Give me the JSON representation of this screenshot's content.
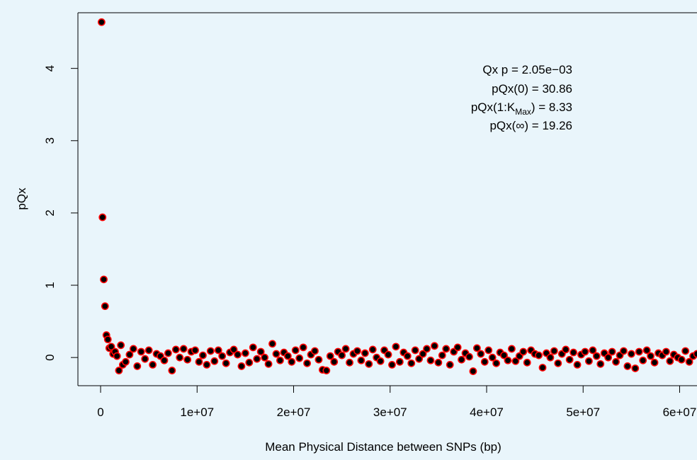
{
  "chart_data": {
    "type": "scatter",
    "xlabel": "Mean Physical Distance between SNPs (bp)",
    "ylabel": "pQx",
    "annotations": [
      "Qx p = 2.05e−03",
      "pQx(0) = 30.86",
      {
        "before": "pQx(1:K",
        "sub": "Max",
        "after": ") = 8.33"
      },
      "pQx(∞) = 19.26"
    ],
    "color": "#000000",
    "edgecolor": "#ff0000",
    "xlim": [
      -2350000,
      61800000
    ],
    "ylim": [
      -0.39,
      4.77
    ],
    "xticks": [
      0,
      {
        "value": 10000000,
        "label": "1e+07"
      },
      {
        "value": 20000000,
        "label": "2e+07"
      },
      {
        "value": 30000000,
        "label": "3e+07"
      },
      {
        "value": 40000000,
        "label": "4e+07"
      },
      {
        "value": 50000000,
        "label": "5e+07"
      },
      {
        "value": 60000000,
        "label": "6e+07"
      }
    ],
    "yticks": [
      0,
      1,
      2,
      3,
      4
    ],
    "x": [
      100000,
      200000,
      330000,
      460000,
      600000,
      750000,
      900000,
      1100000,
      1300000,
      1500000,
      1700000,
      1900000,
      2100000,
      2300000,
      2600000,
      3000000,
      3400000,
      3800000,
      4200000,
      4600000,
      5000000,
      5400000,
      5800000,
      6200000,
      6600000,
      7000000,
      7400000,
      7800000,
      8200000,
      8600000,
      9000000,
      9400000,
      9800000,
      10200000,
      10600000,
      11000000,
      11400000,
      11800000,
      12200000,
      12600000,
      13000000,
      13400000,
      13800000,
      14200000,
      14600000,
      15000000,
      15400000,
      15800000,
      16200000,
      16600000,
      17000000,
      17400000,
      17800000,
      18200000,
      18600000,
      19000000,
      19400000,
      19800000,
      20200000,
      20600000,
      21000000,
      21400000,
      21800000,
      22200000,
      22600000,
      23000000,
      23400000,
      23800000,
      24200000,
      24600000,
      25000000,
      25400000,
      25800000,
      26200000,
      26600000,
      27000000,
      27400000,
      27800000,
      28200000,
      28600000,
      29000000,
      29400000,
      29800000,
      30200000,
      30600000,
      31000000,
      31400000,
      31800000,
      32200000,
      32600000,
      33000000,
      33400000,
      33800000,
      34200000,
      34600000,
      35000000,
      35400000,
      35800000,
      36200000,
      36600000,
      37000000,
      37400000,
      37800000,
      38200000,
      38600000,
      39000000,
      39400000,
      39800000,
      40200000,
      40600000,
      41000000,
      41400000,
      41800000,
      42200000,
      42600000,
      43000000,
      43400000,
      43800000,
      44200000,
      44600000,
      45000000,
      45400000,
      45800000,
      46200000,
      46600000,
      47000000,
      47400000,
      47800000,
      48200000,
      48600000,
      49000000,
      49400000,
      49800000,
      50200000,
      50600000,
      51000000,
      51400000,
      51800000,
      52200000,
      52600000,
      53000000,
      53400000,
      53800000,
      54200000,
      54600000,
      55000000,
      55400000,
      55800000,
      56200000,
      56600000,
      57000000,
      57400000,
      57800000,
      58200000,
      58600000,
      59000000,
      59400000,
      59800000,
      60200000,
      60600000,
      61000000,
      61400000,
      61800000,
      62200000
    ],
    "values": [
      4.64,
      1.94,
      1.08,
      0.71,
      0.31,
      0.25,
      0.13,
      0.15,
      0.05,
      0.08,
      0.02,
      -0.18,
      0.17,
      -0.1,
      -0.06,
      0.04,
      0.12,
      -0.12,
      0.08,
      -0.02,
      0.1,
      -0.1,
      0.05,
      0.02,
      -0.04,
      0.06,
      -0.18,
      0.11,
      0.0,
      0.12,
      -0.03,
      0.08,
      0.1,
      -0.06,
      0.03,
      -0.1,
      0.09,
      -0.05,
      0.1,
      0.02,
      -0.08,
      0.07,
      0.11,
      0.04,
      -0.12,
      0.06,
      -0.07,
      0.14,
      -0.02,
      0.08,
      0.0,
      -0.09,
      0.19,
      0.05,
      -0.04,
      0.07,
      0.02,
      -0.06,
      0.1,
      -0.01,
      0.14,
      -0.08,
      0.04,
      0.09,
      -0.03,
      -0.17,
      -0.18,
      0.02,
      -0.06,
      0.08,
      0.03,
      0.12,
      -0.07,
      0.05,
      0.09,
      -0.04,
      0.06,
      -0.09,
      0.11,
      0.0,
      -0.05,
      0.1,
      0.04,
      -0.1,
      0.15,
      -0.06,
      0.07,
      0.02,
      -0.08,
      0.1,
      -0.02,
      0.05,
      0.12,
      -0.04,
      0.16,
      -0.07,
      0.03,
      0.12,
      -0.1,
      0.08,
      0.14,
      -0.03,
      0.06,
      0.01,
      -0.19,
      0.13,
      0.05,
      -0.06,
      0.1,
      0.0,
      -0.08,
      0.07,
      0.03,
      -0.04,
      0.12,
      -0.05,
      0.02,
      0.08,
      -0.07,
      0.1,
      0.05,
      0.03,
      -0.14,
      0.06,
      0.0,
      0.09,
      -0.08,
      0.05,
      0.11,
      -0.03,
      0.07,
      -0.1,
      0.04,
      0.08,
      -0.05,
      0.1,
      0.02,
      -0.09,
      0.06,
      0.0,
      0.08,
      -0.06,
      0.03,
      0.09,
      -0.12,
      0.05,
      -0.15,
      0.08,
      -0.04,
      0.1,
      0.02,
      -0.07,
      0.06,
      0.03,
      0.08,
      -0.05,
      0.04,
      0.0,
      -0.03,
      0.09,
      -0.06,
      0.02,
      0.05,
      -0.1
    ]
  }
}
